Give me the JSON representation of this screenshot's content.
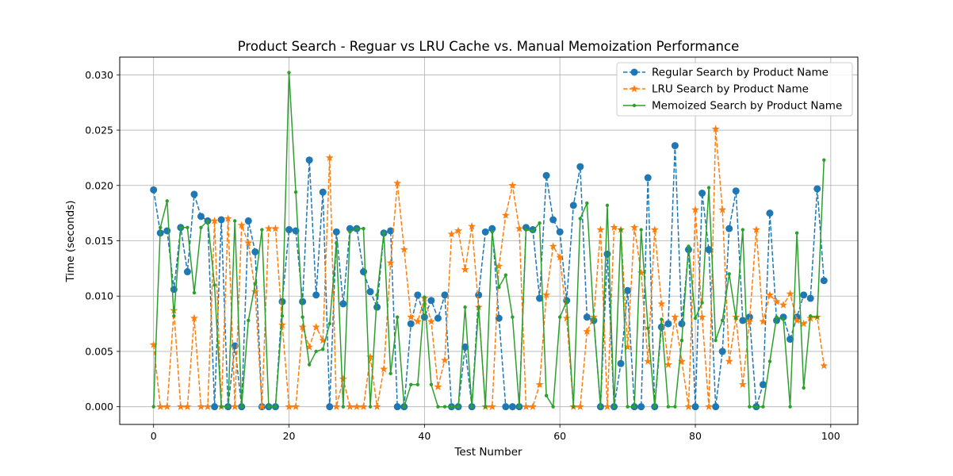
{
  "chart_data": {
    "type": "line",
    "title": "Product Search - Reguar vs LRU Cache vs. Manual Memoization Performance",
    "xlabel": "Test Number",
    "ylabel": "Time (seconds)",
    "xlim": [
      -5,
      104
    ],
    "ylim": [
      -0.0016,
      0.0316
    ],
    "xticks": [
      0,
      20,
      40,
      60,
      80,
      100
    ],
    "xtick_labels": [
      "0",
      "20",
      "40",
      "60",
      "80",
      "100"
    ],
    "yticks": [
      0.0,
      0.005,
      0.01,
      0.015,
      0.02,
      0.025,
      0.03
    ],
    "ytick_labels": [
      "0.000",
      "0.005",
      "0.010",
      "0.015",
      "0.020",
      "0.025",
      "0.030"
    ],
    "grid": true,
    "legend_position": "top-right",
    "x": [
      0,
      1,
      2,
      3,
      4,
      5,
      6,
      7,
      8,
      9,
      10,
      11,
      12,
      13,
      14,
      15,
      16,
      17,
      18,
      19,
      20,
      21,
      22,
      23,
      24,
      25,
      26,
      27,
      28,
      29,
      30,
      31,
      32,
      33,
      34,
      35,
      36,
      37,
      38,
      39,
      40,
      41,
      42,
      43,
      44,
      45,
      46,
      47,
      48,
      49,
      50,
      51,
      52,
      53,
      54,
      55,
      56,
      57,
      58,
      59,
      60,
      61,
      62,
      63,
      64,
      65,
      66,
      67,
      68,
      69,
      70,
      71,
      72,
      73,
      74,
      75,
      76,
      77,
      78,
      79,
      80,
      81,
      82,
      83,
      84,
      85,
      86,
      87,
      88,
      89,
      90,
      91,
      92,
      93,
      94,
      95,
      96,
      97,
      98,
      99
    ],
    "series": [
      {
        "name": "Regular Search by Product Name",
        "color": "#1f77b4",
        "dash": "dashed",
        "marker": "circle",
        "values": [
          0.0196,
          0.0157,
          0.0159,
          0.0106,
          0.0162,
          0.0122,
          0.0192,
          0.0172,
          0.0168,
          0.0,
          0.0169,
          0.0,
          0.0055,
          0.0,
          0.0168,
          0.014,
          0.0,
          0.0,
          0.0,
          0.0095,
          0.016,
          0.0159,
          0.0095,
          0.0223,
          0.0101,
          0.0194,
          0.0,
          0.0158,
          0.0093,
          0.0161,
          0.0161,
          0.0122,
          0.0104,
          0.009,
          0.0157,
          0.0159,
          0.0,
          0.0,
          0.0075,
          0.0101,
          0.0081,
          0.0096,
          0.008,
          0.0101,
          0.0,
          0.0,
          0.0054,
          0.0,
          0.0101,
          0.0158,
          0.0161,
          0.008,
          0.0,
          0.0,
          0.0,
          0.0162,
          0.016,
          0.0098,
          0.0209,
          0.0169,
          0.0158,
          0.0096,
          0.0182,
          0.0217,
          0.0081,
          0.0078,
          0.0,
          0.0138,
          0.0,
          0.0039,
          0.0105,
          0.0,
          0.0,
          0.0207,
          0.0,
          0.0072,
          0.0075,
          0.0236,
          0.0075,
          0.0142,
          0.0,
          0.0193,
          0.0142,
          0.0,
          0.005,
          0.0161,
          0.0195,
          0.0078,
          0.0081,
          0.0,
          0.002,
          0.0175,
          0.0078,
          0.0081,
          0.0061,
          0.0081,
          0.0101,
          0.0098,
          0.0197,
          0.0114
        ]
      },
      {
        "name": "LRU Search by Product Name",
        "color": "#ff7f0e",
        "dash": "dashed",
        "marker": "star",
        "values": [
          0.0056,
          0.0,
          0.0,
          0.0087,
          0.0,
          0.0,
          0.008,
          0.0,
          0.0,
          0.0168,
          0.0,
          0.017,
          0.0,
          0.0164,
          0.0148,
          0.0104,
          0.0,
          0.0161,
          0.0161,
          0.0074,
          0.0,
          0.0,
          0.0072,
          0.0054,
          0.0072,
          0.006,
          0.0225,
          0.0,
          0.0025,
          0.0,
          0.0,
          0.0,
          0.0045,
          0.0,
          0.0034,
          0.013,
          0.0202,
          0.0142,
          0.0081,
          0.0077,
          0.0098,
          0.0077,
          0.0018,
          0.0042,
          0.0156,
          0.0159,
          0.0124,
          0.0163,
          0.009,
          0.0,
          0.0,
          0.0127,
          0.0173,
          0.02,
          0.0161,
          0.0,
          0.0,
          0.002,
          0.0101,
          0.0145,
          0.0135,
          0.008,
          0.0,
          0.0,
          0.0068,
          0.0081,
          0.016,
          0.0,
          0.0162,
          0.016,
          0.0054,
          0.0162,
          0.0121,
          0.0041,
          0.016,
          0.0093,
          0.0038,
          0.0081,
          0.0041,
          0.0,
          0.0178,
          0.0081,
          0.0,
          0.0251,
          0.0178,
          0.0041,
          0.0081,
          0.002,
          0.0077,
          0.016,
          0.0077,
          0.0101,
          0.0095,
          0.0092,
          0.0102,
          0.0078,
          0.0075,
          0.008,
          0.0081,
          0.0037
        ]
      },
      {
        "name": "Memoized Search by Product Name",
        "color": "#2ca02c",
        "dash": "solid",
        "marker": "dot",
        "values": [
          0.0,
          0.0162,
          0.0186,
          0.0082,
          0.0162,
          0.0162,
          0.0103,
          0.0162,
          0.0168,
          0.011,
          0.0,
          0.0,
          0.0168,
          0.0,
          0.0078,
          0.0111,
          0.016,
          0.0,
          0.0,
          0.0082,
          0.0302,
          0.0194,
          0.0081,
          0.0038,
          0.005,
          0.0052,
          0.0075,
          0.0148,
          0.0,
          0.0158,
          0.0161,
          0.0161,
          0.0,
          0.0101,
          0.0157,
          0.003,
          0.0081,
          0.0,
          0.002,
          0.002,
          0.0099,
          0.002,
          0.0,
          0.0,
          0.0,
          0.0,
          0.009,
          0.0,
          0.009,
          0.0,
          0.0158,
          0.0108,
          0.0119,
          0.0081,
          0.0,
          0.016,
          0.0159,
          0.0166,
          0.001,
          0.0,
          0.0081,
          0.0095,
          0.0,
          0.017,
          0.0184,
          0.0079,
          0.0,
          0.0182,
          0.0,
          0.016,
          0.0,
          0.0,
          0.016,
          0.0071,
          0.0,
          0.0079,
          0.0,
          0.0,
          0.006,
          0.0145,
          0.008,
          0.0094,
          0.0198,
          0.006,
          0.0078,
          0.012,
          0.008,
          0.016,
          0.0,
          0.0,
          0.0,
          0.0041,
          0.0081,
          0.0079,
          0.0,
          0.0157,
          0.0017,
          0.0082,
          0.0081,
          0.0223
        ]
      }
    ]
  }
}
